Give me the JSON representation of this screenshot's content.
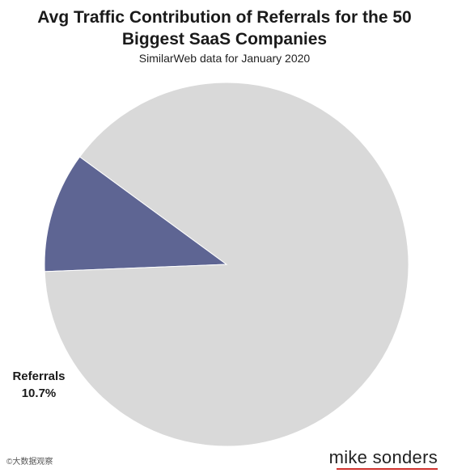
{
  "chart_data": {
    "type": "pie",
    "title_line1": "Avg Traffic Contribution of Referrals for the 50",
    "title_line2": "Biggest SaaS Companies",
    "subtitle": "SimilarWeb data for January 2020",
    "slices": [
      {
        "label": "Referrals",
        "value": 10.7,
        "value_label": "10.7%",
        "color": "#5e6593"
      },
      {
        "label": "",
        "value": 89.3,
        "value_label": "",
        "color": "#d9d9d9"
      }
    ],
    "legend": "none"
  },
  "brand": "mike sonders",
  "watermark": "©大数据观察",
  "colors": {
    "accent": "#d0312d"
  }
}
